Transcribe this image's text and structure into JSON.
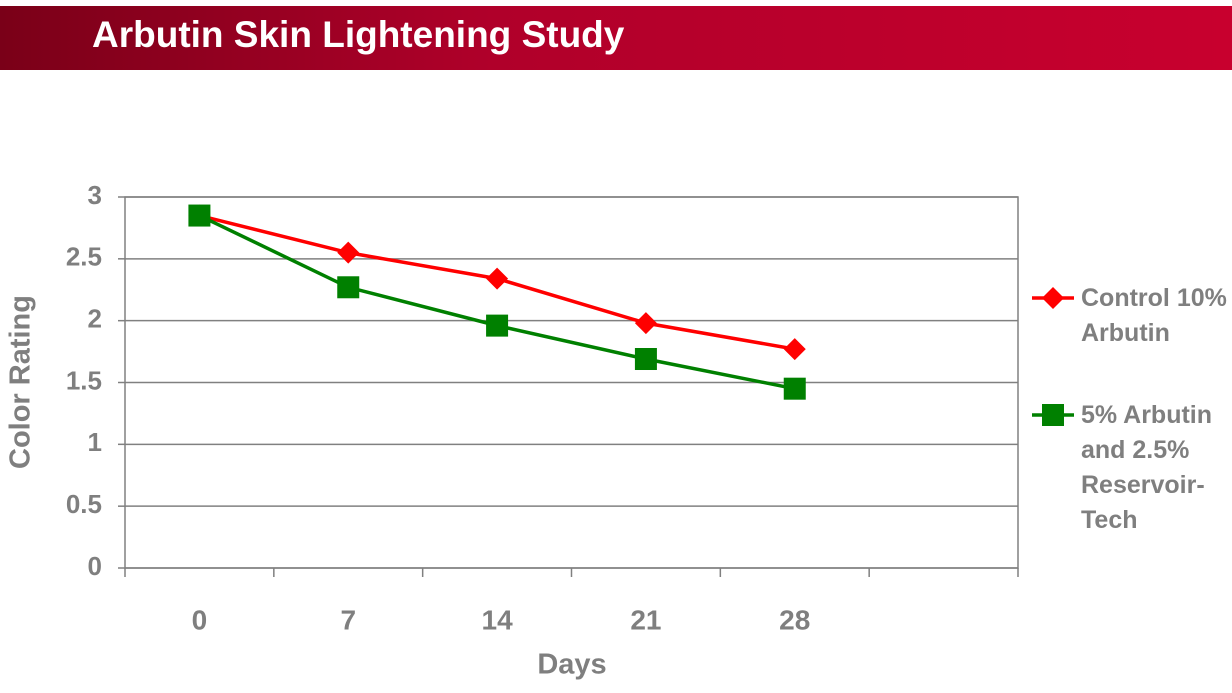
{
  "chart_data": {
    "type": "line",
    "title": "Arbutin Skin Lightening Study",
    "x_label": "Days",
    "y_label": "Color Rating",
    "categories": [
      "0",
      "7",
      "14",
      "21",
      "28",
      null
    ],
    "series": [
      {
        "name": "Control 10% Arbutin",
        "color": "#ff0000",
        "marker": "diamond",
        "values": [
          2.85,
          2.55,
          2.34,
          1.98,
          1.77,
          null
        ]
      },
      {
        "name": "5% Arbutin and 2.5% Reservoir-Tech",
        "color": "#008000",
        "marker": "square",
        "values": [
          2.85,
          2.27,
          1.96,
          1.69,
          1.45,
          null
        ]
      }
    ],
    "ylim": [
      0,
      3
    ],
    "yticks": [
      0,
      0.5,
      1,
      1.5,
      2,
      2.5,
      3
    ],
    "grid": true,
    "legend": "right"
  }
}
